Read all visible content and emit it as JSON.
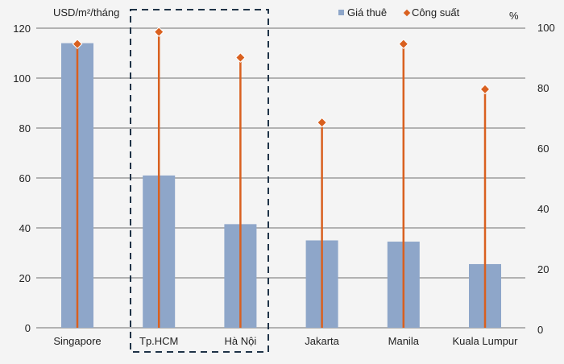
{
  "chart_data": {
    "type": "bar",
    "title": "",
    "ylabel": "USD/m²/tháng",
    "y2label": "%",
    "categories": [
      "Singapore",
      "Tp.HCM",
      "Hà Nội",
      "Jakarta",
      "Manila",
      "Kuala Lumpur"
    ],
    "series": [
      {
        "name": "Giá thuê",
        "type": "bar",
        "axis": "left",
        "color": "#8ea6c9",
        "values": [
          114,
          61,
          41.5,
          35,
          34.5,
          25.5
        ]
      },
      {
        "name": "Công suất",
        "type": "lollipop",
        "axis": "right",
        "color": "#d9601f",
        "values": [
          94.5,
          98.5,
          90,
          68.5,
          94.5,
          79.5
        ]
      }
    ],
    "ylim": [
      0,
      120
    ],
    "yticks": [
      "0",
      "20",
      "40",
      "60",
      "80",
      "100",
      "120"
    ],
    "y2lim": [
      0,
      100
    ],
    "y2ticks": [
      "0",
      "20",
      "40",
      "60",
      "80",
      "100"
    ],
    "grid": true,
    "legend_position": "top-right",
    "highlight": [
      "Tp.HCM",
      "Hà Nội"
    ]
  }
}
